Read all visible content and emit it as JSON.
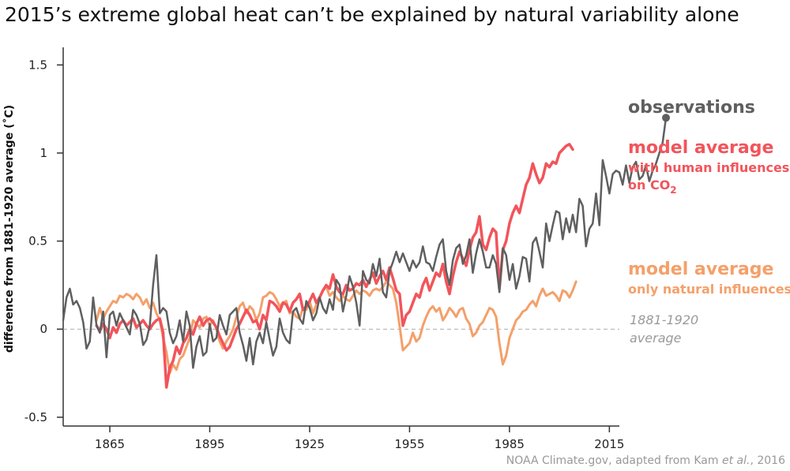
{
  "chart_data": {
    "type": "line",
    "title": "2015’s extreme global heat can’t be explained by natural variability alone",
    "xlabel": "",
    "ylabel": "difference from 1881-1920 average (˚C)",
    "xlim": [
      1851,
      2018
    ],
    "ylim": [
      -0.55,
      1.6
    ],
    "xticks": [
      1865,
      1895,
      1925,
      1955,
      1985,
      2015
    ],
    "xtick_labels": [
      "1865",
      "1895",
      "1925",
      "1955",
      "1985",
      "2015"
    ],
    "yticks": [
      -0.5,
      0,
      0.5,
      1,
      1.5
    ],
    "ytick_labels": [
      "-0.5",
      "0",
      "0.5",
      "1",
      "1.5"
    ],
    "colors": {
      "observations": "#5f5f5f",
      "human": "#f2545b",
      "natural": "#f4a06a",
      "baseline": "#aaaaaa"
    },
    "series": [
      {
        "name": "observations",
        "x_start": 1851,
        "values": [
          0.05,
          0.18,
          0.23,
          0.14,
          0.16,
          0.12,
          0.04,
          -0.11,
          -0.07,
          0.18,
          0.02,
          -0.02,
          0.1,
          -0.16,
          0.08,
          0.1,
          0.02,
          0.09,
          0.05,
          0.01,
          -0.03,
          0.11,
          0.08,
          0.03,
          -0.09,
          -0.06,
          0.02,
          0.25,
          0.42,
          0.09,
          0.12,
          0.1,
          -0.02,
          -0.08,
          -0.04,
          0.05,
          -0.07,
          0.1,
          0.02,
          -0.22,
          -0.1,
          -0.04,
          -0.15,
          -0.13,
          0.03,
          -0.07,
          -0.05,
          0.08,
          0.02,
          -0.03,
          0.08,
          0.1,
          0.12,
          -0.02,
          -0.09,
          -0.18,
          -0.05,
          -0.2,
          -0.07,
          -0.02,
          -0.08,
          0.04,
          -0.06,
          -0.15,
          -0.1,
          0.06,
          -0.02,
          -0.06,
          -0.08,
          0.1,
          0.12,
          0.06,
          0.03,
          0.16,
          0.12,
          0.05,
          0.09,
          0.18,
          0.12,
          0.09,
          0.17,
          0.11,
          0.28,
          0.25,
          0.1,
          0.19,
          0.3,
          0.24,
          0.15,
          0.02,
          0.33,
          0.28,
          0.26,
          0.37,
          0.3,
          0.4,
          0.21,
          0.18,
          0.33,
          0.38,
          0.44,
          0.38,
          0.43,
          0.38,
          0.33,
          0.39,
          0.35,
          0.38,
          0.47,
          0.38,
          0.37,
          0.33,
          0.41,
          0.48,
          0.51,
          0.33,
          0.25,
          0.39,
          0.46,
          0.48,
          0.37,
          0.42,
          0.51,
          0.32,
          0.43,
          0.51,
          0.44,
          0.35,
          0.35,
          0.42,
          0.37,
          0.21,
          0.46,
          0.42,
          0.28,
          0.37,
          0.23,
          0.3,
          0.41,
          0.4,
          0.27,
          0.49,
          0.52,
          0.44,
          0.35,
          0.6,
          0.5,
          0.59,
          0.67,
          0.66,
          0.51,
          0.63,
          0.55,
          0.65,
          0.55,
          0.74,
          0.7,
          0.47,
          0.57,
          0.6,
          0.77,
          0.59,
          0.96,
          0.87,
          0.77,
          0.88,
          0.9,
          0.89,
          0.82,
          0.93,
          0.83,
          0.92,
          0.95,
          0.85,
          0.87,
          0.93,
          0.84,
          0.9,
          0.94,
          1.0,
          1.06,
          1.2
        ]
      },
      {
        "name": "model average with human influences on CO2",
        "x_start": 1861,
        "values": [
          0.02,
          -0.01,
          0.03,
          0.0,
          -0.05,
          0.01,
          -0.02,
          0.03,
          0.05,
          0.02,
          0.04,
          0.06,
          0.01,
          0.03,
          0.05,
          0.02,
          0.0,
          0.03,
          0.05,
          0.06,
          -0.02,
          -0.33,
          -0.22,
          -0.18,
          -0.1,
          -0.14,
          -0.08,
          -0.05,
          0.0,
          -0.03,
          0.03,
          0.07,
          0.02,
          0.05,
          0.06,
          0.04,
          0.01,
          -0.04,
          -0.08,
          -0.12,
          -0.1,
          -0.05,
          0.0,
          0.03,
          0.07,
          0.11,
          0.08,
          0.04,
          0.05,
          0.0,
          0.08,
          0.05,
          0.16,
          0.15,
          0.13,
          0.1,
          0.15,
          0.14,
          0.1,
          0.15,
          0.17,
          0.2,
          0.11,
          0.13,
          0.16,
          0.2,
          0.15,
          0.18,
          0.22,
          0.25,
          0.23,
          0.31,
          0.24,
          0.21,
          0.2,
          0.25,
          0.22,
          0.23,
          0.26,
          0.25,
          0.28,
          0.24,
          0.28,
          0.32,
          0.26,
          0.3,
          0.33,
          0.28,
          0.35,
          0.29,
          0.22,
          0.2,
          0.02,
          0.08,
          0.1,
          0.15,
          0.2,
          0.18,
          0.25,
          0.29,
          0.22,
          0.27,
          0.32,
          0.3,
          0.37,
          0.27,
          0.2,
          0.3,
          0.38,
          0.44,
          0.4,
          0.36,
          0.45,
          0.52,
          0.55,
          0.64,
          0.48,
          0.45,
          0.52,
          0.57,
          0.55,
          0.23,
          0.45,
          0.5,
          0.6,
          0.66,
          0.7,
          0.66,
          0.74,
          0.82,
          0.86,
          0.94,
          0.88,
          0.83,
          0.86,
          0.94,
          0.92,
          0.95,
          0.94,
          1.0,
          1.02,
          1.04,
          1.05,
          1.02
        ]
      },
      {
        "name": "model average only natural influences",
        "x_start": 1861,
        "values": [
          0.05,
          0.12,
          0.06,
          0.1,
          0.13,
          0.16,
          0.15,
          0.19,
          0.18,
          0.2,
          0.19,
          0.17,
          0.2,
          0.18,
          0.14,
          0.17,
          0.12,
          0.15,
          0.09,
          0.05,
          -0.05,
          -0.13,
          -0.25,
          -0.2,
          -0.23,
          -0.17,
          -0.15,
          -0.1,
          -0.05,
          0.05,
          0.03,
          0.01,
          0.06,
          0.07,
          0.02,
          0.05,
          0.0,
          -0.07,
          -0.11,
          -0.07,
          -0.04,
          0.0,
          0.07,
          0.13,
          0.15,
          0.09,
          0.13,
          0.11,
          0.05,
          0.09,
          0.18,
          0.19,
          0.21,
          0.2,
          0.17,
          0.13,
          0.15,
          0.16,
          0.09,
          0.1,
          0.07,
          0.06,
          0.12,
          0.11,
          0.16,
          0.09,
          0.14,
          0.18,
          0.22,
          0.24,
          0.19,
          0.21,
          0.18,
          0.16,
          0.19,
          0.17,
          0.16,
          0.19,
          0.22,
          0.2,
          0.22,
          0.21,
          0.19,
          0.22,
          0.23,
          0.22,
          0.24,
          0.27,
          0.25,
          0.23,
          0.15,
          0.02,
          -0.12,
          -0.1,
          -0.08,
          -0.02,
          -0.07,
          -0.05,
          0.02,
          0.07,
          0.11,
          0.13,
          0.1,
          0.12,
          0.05,
          0.08,
          0.12,
          0.1,
          0.07,
          0.11,
          0.12,
          0.06,
          0.03,
          -0.04,
          -0.02,
          0.02,
          0.04,
          0.08,
          0.12,
          0.11,
          0.07,
          -0.08,
          -0.2,
          -0.15,
          -0.05,
          0.0,
          0.05,
          0.07,
          0.1,
          0.11,
          0.14,
          0.16,
          0.13,
          0.19,
          0.23,
          0.19,
          0.2,
          0.21,
          0.19,
          0.16,
          0.22,
          0.21,
          0.18,
          0.22,
          0.27
        ]
      }
    ],
    "baseline": {
      "y": 0
    },
    "annotations": {
      "observations": "observations",
      "human_title": "model average",
      "human_sub1": "with human influences",
      "human_sub2": "on CO",
      "human_sub2_sub": "2",
      "natural_title": "model average",
      "natural_sub": "only natural influences",
      "baseline_line1": "1881-1920",
      "baseline_line2": "average"
    },
    "source": "NOAA Climate.gov, adapted from Kam ",
    "source_italic": "et al.",
    "source_end": ", 2016"
  }
}
